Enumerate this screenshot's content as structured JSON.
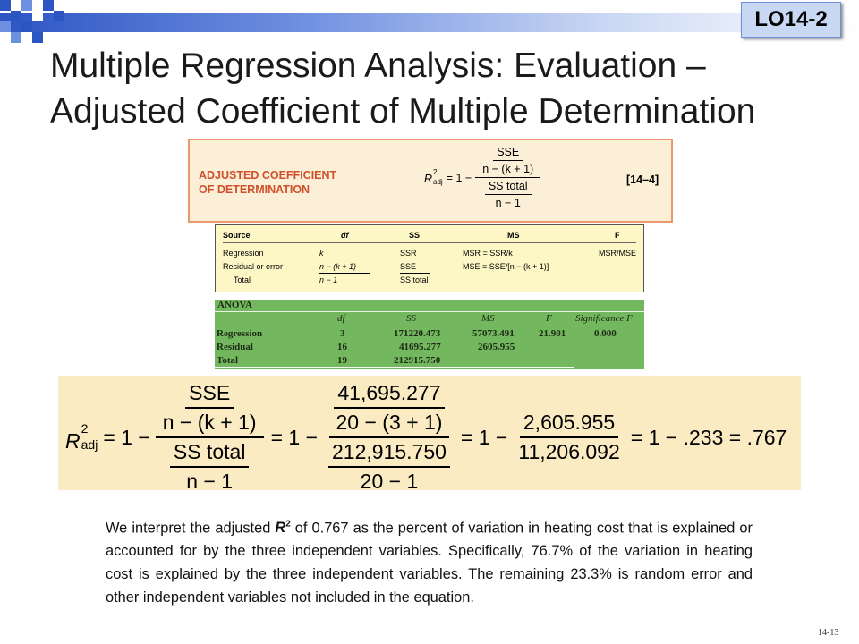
{
  "badge": "LO14-2",
  "title": {
    "line1": "Multiple Regression Analysis: Evaluation –",
    "line2": "Adjusted Coefficient of Multiple Determination"
  },
  "formula_box": {
    "label_line1": "ADJUSTED COEFFICIENT",
    "label_line2": "OF DETERMINATION",
    "equation_ref": "[14–4]",
    "R": "R",
    "sup": "2",
    "sub": "adj",
    "equals_one_minus": "= 1 −",
    "num_top": "SSE",
    "num_bottom": "n − (k + 1)",
    "den_top": "SS total",
    "den_bottom": "n − 1"
  },
  "generic_table": {
    "headers": [
      "Source",
      "df",
      "SS",
      "MS",
      "F"
    ],
    "rows": [
      {
        "source": "Regression",
        "df": "k",
        "ss": "SSR",
        "ms": "MSR = SSR/k",
        "f": "MSR/MSE"
      },
      {
        "source": "Residual or error",
        "df": "n − (k + 1)",
        "ss": "SSE",
        "ms": "MSE = SSE/[n − (k + 1)]",
        "f": ""
      },
      {
        "source": "Total",
        "df": "n − 1",
        "ss": "SS total",
        "ms": "",
        "f": ""
      }
    ]
  },
  "anova_table": {
    "caption": "ANOVA",
    "headers": [
      "df",
      "SS",
      "MS",
      "F",
      "Significance F"
    ],
    "rows": [
      {
        "source": "Regression",
        "df": "3",
        "ss": "171220.473",
        "ms": "57073.491",
        "f": "21.901",
        "sig": "0.000"
      },
      {
        "source": "Residual",
        "df": "16",
        "ss": "41695.277",
        "ms": "2605.955",
        "f": "",
        "sig": ""
      },
      {
        "source": "Total",
        "df": "19",
        "ss": "212915.750",
        "ms": "",
        "f": "",
        "sig": ""
      }
    ]
  },
  "worked": {
    "R": "R",
    "sup": "2",
    "sub": "adj",
    "eq1": "= 1 −",
    "sym_num_top": "SSE",
    "sym_num_bottom": "n − (k + 1)",
    "sym_den_top": "SS total",
    "sym_den_bottom": "n − 1",
    "eq2": "= 1 −",
    "val_num_top": "41,695.277",
    "val_num_bottom": "20 − (3 + 1)",
    "val_den_top": "212,915.750",
    "val_den_bottom": "20 − 1",
    "eq3": "= 1 −",
    "ms_num": "2,605.955",
    "ms_den": "11,206.092",
    "eq4": "= 1 − .233 = .767"
  },
  "paragraph": {
    "part1": "We interpret the adjusted ",
    "R": "R",
    "sup": "2",
    "part2": " of 0.767 as the percent of variation in heating cost that is explained or accounted for by the three independent variables. Specifically, 76.7% of the variation in heating cost is explained by the three independent variables.  The remaining 23.3% is random error and other independent variables not included in the equation."
  },
  "page_number": "14-13",
  "colors": {
    "header_blue": "#2c55c4",
    "formula_box_bg": "#fcefd8",
    "formula_label": "#d0502a",
    "generic_table_bg": "#fdf7c6",
    "anova_green": "#73b85e",
    "worked_bg": "#faebc2"
  }
}
